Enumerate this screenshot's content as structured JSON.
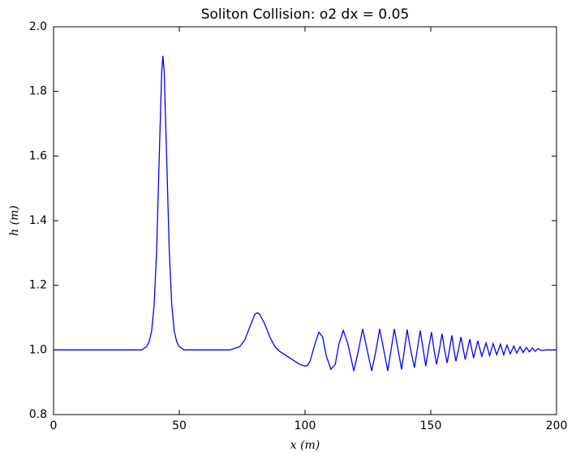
{
  "chart_data": {
    "type": "line",
    "title": "Soliton Collision: o2 dx = 0.05",
    "x_label": "x (m)",
    "y_label": "h (m)",
    "xlim": [
      0,
      200
    ],
    "ylim": [
      0.8,
      2.0
    ],
    "xticks": [
      0,
      50,
      100,
      150,
      200
    ],
    "yticks": [
      {
        "value": 0.8,
        "label": "0.8"
      },
      {
        "value": 1.0,
        "label": "1.0"
      },
      1.2,
      1.4,
      1.6,
      1.8,
      {
        "value": 2.0,
        "label": "2.0"
      }
    ],
    "series": [
      {
        "name": "h",
        "color": "#0000ff",
        "x": [
          0,
          20,
          35,
          37,
          38,
          39,
          40,
          41,
          42,
          43,
          43.5,
          44,
          45,
          46,
          47,
          48,
          49,
          50,
          52,
          70,
          74,
          76,
          78,
          80,
          81,
          82,
          84,
          86,
          88,
          90,
          92,
          94,
          96,
          98,
          100,
          101,
          102,
          104,
          105.5,
          107,
          108.5,
          110.3,
          112,
          113.5,
          115.2,
          117,
          119.4,
          121,
          122.9,
          124.7,
          126.5,
          128,
          129.7,
          131.3,
          132.9,
          134.2,
          135.5,
          137,
          138.4,
          139.5,
          140.6,
          142,
          143.5,
          144.6,
          145.8,
          147,
          148,
          149,
          150.3,
          151.3,
          152.3,
          153.4,
          154.5,
          155.5,
          156.5,
          157.4,
          158.4,
          159.2,
          160,
          161,
          162,
          163.7,
          165.5,
          167,
          168.7,
          170.3,
          172,
          173.4,
          174.8,
          176.2,
          177.7,
          179,
          180.3,
          181.6,
          183,
          184.2,
          185.5,
          186.7,
          188,
          189.2,
          190.4,
          191.5,
          192.6,
          194,
          196,
          200
        ],
        "values": [
          1.0,
          1.0,
          1.0,
          1.01,
          1.025,
          1.058,
          1.14,
          1.31,
          1.59,
          1.86,
          1.91,
          1.86,
          1.59,
          1.31,
          1.14,
          1.058,
          1.025,
          1.01,
          1.0,
          1.0,
          1.01,
          1.03,
          1.07,
          1.11,
          1.115,
          1.11,
          1.08,
          1.04,
          1.01,
          0.995,
          0.985,
          0.975,
          0.965,
          0.955,
          0.95,
          0.953,
          0.965,
          1.02,
          1.055,
          1.04,
          0.98,
          0.94,
          0.955,
          1.02,
          1.06,
          1.02,
          0.935,
          0.99,
          1.065,
          1.0,
          0.935,
          0.99,
          1.065,
          1.0,
          0.935,
          1.0,
          1.065,
          1.0,
          0.94,
          1.0,
          1.063,
          1.0,
          0.945,
          1.0,
          1.06,
          1.0,
          0.95,
          1.0,
          1.055,
          1.0,
          0.955,
          1.0,
          1.05,
          1.0,
          0.96,
          1.0,
          1.045,
          1.0,
          0.965,
          1.0,
          1.04,
          0.97,
          1.033,
          0.975,
          1.028,
          0.98,
          1.022,
          0.982,
          1.02,
          0.985,
          1.018,
          0.985,
          1.015,
          0.988,
          1.012,
          0.99,
          1.01,
          0.992,
          1.008,
          0.994,
          1.006,
          0.996,
          1.004,
          0.998,
          1.0,
          1.0
        ]
      }
    ]
  }
}
